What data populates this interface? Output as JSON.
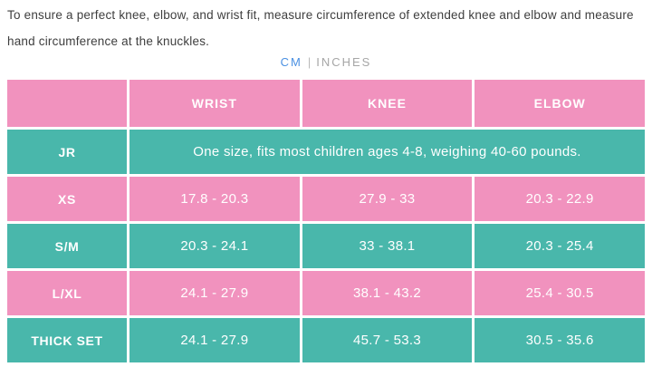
{
  "description": "To ensure a perfect knee, elbow, and wrist fit, measure circumference of extended knee and elbow and measure hand circumference at the knuckles.",
  "unit_toggle": {
    "cm_label": "CM",
    "inches_label": "INCHES",
    "separator": "|",
    "selected": "CM"
  },
  "colors": {
    "pink": "#f192be",
    "teal": "#49b7ab",
    "active_blue": "#4a90e2",
    "inactive_gray": "#a6a6a6",
    "body_text": "#3e3e3e"
  },
  "table": {
    "columns": [
      "",
      "WRIST",
      "KNEE",
      "ELBOW"
    ],
    "jr_row": {
      "label": "JR",
      "note": "One size, fits most children ages 4-8, weighing 40-60 pounds."
    },
    "rows": [
      {
        "label": "XS",
        "wrist": "17.8 - 20.3",
        "knee": "27.9 - 33",
        "elbow": "20.3 - 22.9"
      },
      {
        "label": "S/M",
        "wrist": "20.3 - 24.1",
        "knee": "33 - 38.1",
        "elbow": "20.3 - 25.4"
      },
      {
        "label": "L/XL",
        "wrist": "24.1 - 27.9",
        "knee": "38.1 - 43.2",
        "elbow": "25.4 - 30.5"
      },
      {
        "label": "THICK SET",
        "wrist": "24.1 - 27.9",
        "knee": "45.7 - 53.3",
        "elbow": "30.5 - 35.6"
      }
    ]
  }
}
